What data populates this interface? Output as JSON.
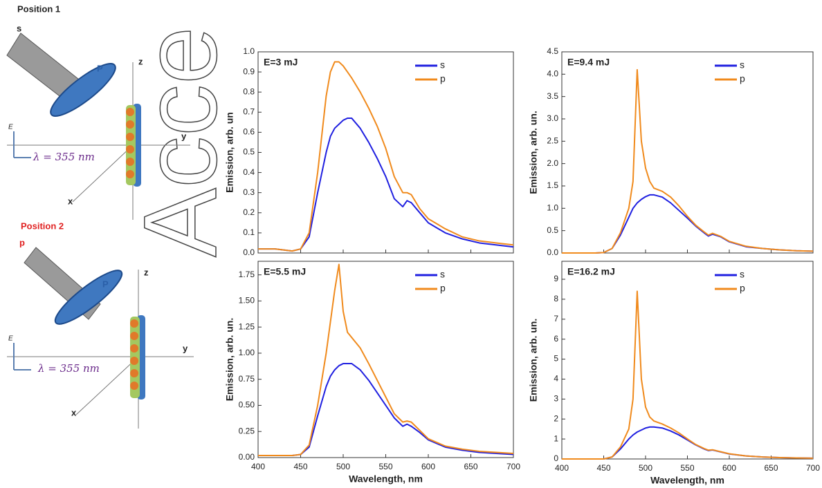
{
  "watermark": "Acce",
  "diagram": {
    "position1": {
      "title": "Position 1",
      "polarization": "s",
      "polarizer": "P",
      "z": "z",
      "y": "y",
      "x": "x",
      "field": "E",
      "wavelength": "λ = 355 nm"
    },
    "position2": {
      "title": "Position 2",
      "polarization": "p",
      "polarizer": "P",
      "z": "z",
      "y": "y",
      "x": "x",
      "field": "E",
      "wavelength": "λ = 355 nm"
    }
  },
  "chart_data": [
    {
      "type": "line",
      "annotation": "E=3 mJ",
      "ylabel": "Emission, arb. un",
      "xtick_labels": false,
      "legend": "upper right",
      "x": [
        400,
        420,
        440,
        450,
        460,
        470,
        480,
        485,
        490,
        495,
        500,
        505,
        510,
        520,
        530,
        540,
        550,
        560,
        570,
        575,
        580,
        590,
        600,
        620,
        640,
        660,
        680,
        700
      ],
      "xlim": [
        400,
        700
      ],
      "xticks": [
        400,
        450,
        500,
        550,
        600,
        650,
        700
      ],
      "ylim": [
        0,
        1.0
      ],
      "yticks": [
        {
          "value": 0,
          "label": "0.0"
        },
        0.1,
        0.2,
        0.3,
        0.4,
        0.5,
        0.6,
        0.7,
        0.8,
        0.9,
        {
          "value": 1,
          "label": "1.0"
        }
      ],
      "series": [
        {
          "name": "s",
          "color": "#1f1fe0",
          "values": [
            0.02,
            0.02,
            0.01,
            0.02,
            0.08,
            0.3,
            0.5,
            0.58,
            0.62,
            0.64,
            0.66,
            0.67,
            0.67,
            0.62,
            0.55,
            0.47,
            0.38,
            0.27,
            0.23,
            0.26,
            0.25,
            0.2,
            0.15,
            0.1,
            0.07,
            0.05,
            0.04,
            0.03
          ]
        },
        {
          "name": "p",
          "color": "#f08a1c",
          "values": [
            0.02,
            0.02,
            0.01,
            0.02,
            0.1,
            0.4,
            0.78,
            0.9,
            0.95,
            0.95,
            0.93,
            0.9,
            0.87,
            0.8,
            0.72,
            0.63,
            0.52,
            0.38,
            0.3,
            0.3,
            0.29,
            0.22,
            0.17,
            0.12,
            0.08,
            0.06,
            0.05,
            0.04
          ]
        }
      ]
    },
    {
      "type": "line",
      "annotation": "E=9.4 mJ",
      "ylabel": "Emission, arb. un.",
      "xtick_labels": false,
      "legend": "upper right",
      "x": [
        400,
        420,
        440,
        450,
        460,
        470,
        480,
        485,
        490,
        495,
        500,
        505,
        510,
        520,
        530,
        540,
        550,
        560,
        570,
        575,
        580,
        590,
        600,
        620,
        640,
        660,
        680,
        700
      ],
      "xlim": [
        400,
        700
      ],
      "xticks": [
        400,
        450,
        500,
        550,
        600,
        650,
        700
      ],
      "ylim": [
        0,
        4.5
      ],
      "yticks": [
        {
          "value": 0,
          "label": "0.0"
        },
        0.5,
        {
          "value": 1,
          "label": "1.0"
        },
        1.5,
        {
          "value": 2,
          "label": "2.0"
        },
        2.5,
        {
          "value": 3,
          "label": "3.0"
        },
        3.5,
        {
          "value": 4,
          "label": "4.0"
        },
        4.5
      ],
      "series": [
        {
          "name": "s",
          "color": "#1f1fe0",
          "values": [
            0,
            0,
            0,
            0.01,
            0.1,
            0.4,
            0.8,
            1.0,
            1.12,
            1.2,
            1.26,
            1.3,
            1.3,
            1.25,
            1.12,
            0.95,
            0.78,
            0.6,
            0.45,
            0.38,
            0.42,
            0.36,
            0.25,
            0.14,
            0.1,
            0.07,
            0.05,
            0.04
          ]
        },
        {
          "name": "p",
          "color": "#f08a1c",
          "values": [
            0,
            0,
            0,
            0.01,
            0.1,
            0.45,
            1.0,
            1.6,
            4.1,
            2.5,
            1.9,
            1.6,
            1.45,
            1.38,
            1.25,
            1.05,
            0.82,
            0.62,
            0.47,
            0.4,
            0.44,
            0.37,
            0.26,
            0.15,
            0.1,
            0.07,
            0.05,
            0.04
          ]
        }
      ]
    },
    {
      "type": "line",
      "annotation": "E=5.5 mJ",
      "ylabel": "Emission, arb. un.",
      "xlabel": "Wavelength, nm",
      "xtick_labels": true,
      "legend": "upper right",
      "x": [
        400,
        420,
        440,
        450,
        460,
        470,
        480,
        485,
        490,
        495,
        500,
        505,
        510,
        520,
        530,
        540,
        550,
        560,
        570,
        575,
        580,
        590,
        600,
        620,
        640,
        660,
        680,
        700
      ],
      "xlim": [
        400,
        700
      ],
      "xticks": [
        400,
        450,
        500,
        550,
        600,
        650,
        700
      ],
      "ylim": [
        0,
        1.88
      ],
      "yticks": [
        {
          "value": 0,
          "label": "0.00"
        },
        0.25,
        {
          "value": 0.5,
          "label": "0.50"
        },
        0.75,
        {
          "value": 1,
          "label": "1.00"
        },
        1.25,
        {
          "value": 1.5,
          "label": "1.50"
        },
        1.75
      ],
      "series": [
        {
          "name": "s",
          "color": "#1f1fe0",
          "values": [
            0.02,
            0.02,
            0.02,
            0.03,
            0.1,
            0.4,
            0.68,
            0.78,
            0.84,
            0.88,
            0.9,
            0.9,
            0.9,
            0.84,
            0.74,
            0.62,
            0.5,
            0.38,
            0.3,
            0.32,
            0.3,
            0.24,
            0.17,
            0.1,
            0.07,
            0.05,
            0.04,
            0.03
          ]
        },
        {
          "name": "p",
          "color": "#f08a1c",
          "values": [
            0.02,
            0.02,
            0.02,
            0.03,
            0.12,
            0.5,
            1.0,
            1.3,
            1.6,
            1.85,
            1.4,
            1.2,
            1.15,
            1.05,
            0.9,
            0.74,
            0.58,
            0.42,
            0.34,
            0.35,
            0.34,
            0.26,
            0.18,
            0.11,
            0.08,
            0.06,
            0.05,
            0.04
          ]
        }
      ]
    },
    {
      "type": "line",
      "annotation": "E=16.2 mJ",
      "ylabel": "Emission, arb. un.",
      "xlabel": "Wavelength, nm",
      "xtick_labels": true,
      "legend": "upper right",
      "x": [
        400,
        420,
        440,
        450,
        460,
        470,
        480,
        485,
        490,
        495,
        500,
        505,
        510,
        520,
        530,
        540,
        550,
        560,
        570,
        575,
        580,
        590,
        600,
        620,
        640,
        660,
        680,
        700
      ],
      "xlim": [
        400,
        700
      ],
      "xticks": [
        400,
        450,
        500,
        550,
        600,
        650,
        700
      ],
      "ylim": [
        0,
        9.9
      ],
      "yticks": [
        0,
        1,
        2,
        3,
        4,
        5,
        6,
        7,
        8,
        9
      ],
      "series": [
        {
          "name": "s",
          "color": "#1f1fe0",
          "values": [
            0,
            0,
            0,
            0,
            0.1,
            0.5,
            1.0,
            1.2,
            1.35,
            1.45,
            1.55,
            1.6,
            1.6,
            1.55,
            1.4,
            1.2,
            0.95,
            0.7,
            0.5,
            0.42,
            0.45,
            0.35,
            0.25,
            0.15,
            0.1,
            0.07,
            0.05,
            0.04
          ]
        },
        {
          "name": "p",
          "color": "#f08a1c",
          "values": [
            0,
            0,
            0,
            0,
            0.1,
            0.6,
            1.5,
            3.0,
            8.4,
            4.0,
            2.6,
            2.1,
            1.9,
            1.75,
            1.55,
            1.3,
            1.0,
            0.72,
            0.52,
            0.44,
            0.46,
            0.36,
            0.26,
            0.15,
            0.1,
            0.07,
            0.05,
            0.04
          ]
        }
      ]
    }
  ]
}
